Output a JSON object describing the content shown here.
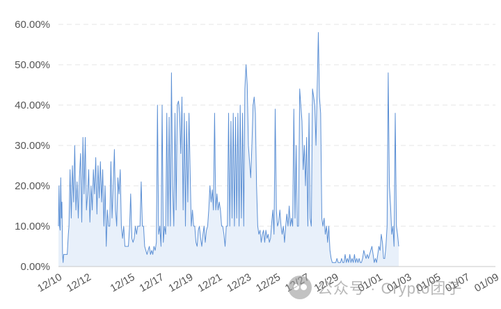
{
  "watermark": {
    "text": "公众号 · Crypto团子"
  },
  "chart_data": {
    "type": "area",
    "title": "",
    "xlabel": "",
    "ylabel": "",
    "ylim": [
      0,
      60
    ],
    "yticks": [
      0,
      10,
      20,
      30,
      40,
      50,
      60
    ],
    "ytick_labels": [
      "0.00%",
      "10.00%",
      "20.00%",
      "30.00%",
      "40.00%",
      "50.00%",
      "60.00%"
    ],
    "y_unit": "%",
    "x_range_days": [
      0,
      30
    ],
    "xticks": [
      {
        "day": 0,
        "label": "12/10"
      },
      {
        "day": 2,
        "label": "12/12"
      },
      {
        "day": 5,
        "label": "12/15"
      },
      {
        "day": 7,
        "label": "12/17"
      },
      {
        "day": 9,
        "label": "12/19"
      },
      {
        "day": 11,
        "label": "12/21"
      },
      {
        "day": 13,
        "label": "12/23"
      },
      {
        "day": 15,
        "label": "12/25"
      },
      {
        "day": 17,
        "label": "12/27"
      },
      {
        "day": 19,
        "label": "12/29"
      },
      {
        "day": 22,
        "label": "01/01"
      },
      {
        "day": 24,
        "label": "01/03"
      },
      {
        "day": 26,
        "label": "01/05"
      },
      {
        "day": 28,
        "label": "01/07"
      },
      {
        "day": 30,
        "label": "01/09"
      }
    ],
    "grid": true,
    "legend": "none",
    "colors": {
      "line": "#5b8fd4",
      "fill": "#e8f0fa",
      "grid": "#e4e4e4",
      "text": "#555555"
    },
    "series": [
      {
        "points": [
          [
            0.0,
            10
          ],
          [
            0.04,
            20
          ],
          [
            0.08,
            10
          ],
          [
            0.12,
            9
          ],
          [
            0.16,
            22
          ],
          [
            0.2,
            12
          ],
          [
            0.24,
            16
          ],
          [
            0.28,
            3
          ],
          [
            0.32,
            1
          ],
          [
            0.36,
            3
          ],
          [
            0.44,
            3
          ],
          [
            0.52,
            3
          ],
          [
            0.6,
            3
          ],
          [
            0.68,
            8
          ],
          [
            0.72,
            10
          ],
          [
            0.8,
            24
          ],
          [
            0.88,
            12
          ],
          [
            0.96,
            25
          ],
          [
            1.04,
            16
          ],
          [
            1.12,
            30
          ],
          [
            1.2,
            14
          ],
          [
            1.28,
            21
          ],
          [
            1.36,
            12
          ],
          [
            1.44,
            22
          ],
          [
            1.52,
            28
          ],
          [
            1.6,
            11
          ],
          [
            1.68,
            32
          ],
          [
            1.76,
            18
          ],
          [
            1.84,
            32
          ],
          [
            1.92,
            14
          ],
          [
            2.0,
            18
          ],
          [
            2.08,
            24
          ],
          [
            2.16,
            11
          ],
          [
            2.24,
            20
          ],
          [
            2.32,
            14
          ],
          [
            2.4,
            24
          ],
          [
            2.48,
            18
          ],
          [
            2.56,
            27
          ],
          [
            2.64,
            13
          ],
          [
            2.72,
            25
          ],
          [
            2.8,
            17
          ],
          [
            2.88,
            26
          ],
          [
            2.96,
            16
          ],
          [
            3.04,
            24
          ],
          [
            3.12,
            10
          ],
          [
            3.2,
            20
          ],
          [
            3.28,
            5
          ],
          [
            3.36,
            14
          ],
          [
            3.44,
            10
          ],
          [
            3.52,
            10
          ],
          [
            3.6,
            26
          ],
          [
            3.68,
            12
          ],
          [
            3.76,
            20
          ],
          [
            3.84,
            29
          ],
          [
            3.92,
            14
          ],
          [
            4.0,
            10
          ],
          [
            4.08,
            22
          ],
          [
            4.16,
            18
          ],
          [
            4.24,
            24
          ],
          [
            4.32,
            10
          ],
          [
            4.4,
            7
          ],
          [
            4.48,
            10
          ],
          [
            4.56,
            5
          ],
          [
            4.64,
            5
          ],
          [
            4.72,
            5
          ],
          [
            4.8,
            5
          ],
          [
            4.88,
            10
          ],
          [
            4.96,
            18
          ],
          [
            5.04,
            7
          ],
          [
            5.12,
            6
          ],
          [
            5.2,
            7
          ],
          [
            5.28,
            10
          ],
          [
            5.36,
            8
          ],
          [
            5.44,
            10
          ],
          [
            5.52,
            10
          ],
          [
            5.6,
            10
          ],
          [
            5.68,
            21
          ],
          [
            5.76,
            10
          ],
          [
            5.84,
            10
          ],
          [
            5.92,
            5
          ],
          [
            6.0,
            4
          ],
          [
            6.08,
            3
          ],
          [
            6.16,
            4
          ],
          [
            6.24,
            5
          ],
          [
            6.32,
            3
          ],
          [
            6.4,
            4
          ],
          [
            6.48,
            3
          ],
          [
            6.56,
            5
          ],
          [
            6.64,
            4
          ],
          [
            6.72,
            6
          ],
          [
            6.8,
            40
          ],
          [
            6.88,
            8
          ],
          [
            6.96,
            10
          ],
          [
            7.04,
            5
          ],
          [
            7.12,
            40
          ],
          [
            7.2,
            6
          ],
          [
            7.28,
            10
          ],
          [
            7.36,
            8
          ],
          [
            7.44,
            38
          ],
          [
            7.52,
            10
          ],
          [
            7.6,
            37
          ],
          [
            7.68,
            10
          ],
          [
            7.76,
            48
          ],
          [
            7.84,
            20
          ],
          [
            7.92,
            10
          ],
          [
            8.0,
            38
          ],
          [
            8.08,
            14
          ],
          [
            8.16,
            40
          ],
          [
            8.24,
            41
          ],
          [
            8.32,
            38
          ],
          [
            8.4,
            28
          ],
          [
            8.48,
            42
          ],
          [
            8.56,
            14
          ],
          [
            8.64,
            38
          ],
          [
            8.72,
            10
          ],
          [
            8.8,
            36
          ],
          [
            8.88,
            16
          ],
          [
            8.96,
            38
          ],
          [
            9.04,
            24
          ],
          [
            9.12,
            10
          ],
          [
            9.2,
            14
          ],
          [
            9.28,
            10
          ],
          [
            9.36,
            10
          ],
          [
            9.44,
            6
          ],
          [
            9.52,
            5
          ],
          [
            9.6,
            9
          ],
          [
            9.68,
            10
          ],
          [
            9.76,
            7
          ],
          [
            9.84,
            5
          ],
          [
            9.92,
            8
          ],
          [
            10.0,
            10
          ],
          [
            10.08,
            6
          ],
          [
            10.16,
            9
          ],
          [
            10.24,
            10
          ],
          [
            10.32,
            14
          ],
          [
            10.4,
            20
          ],
          [
            10.48,
            16
          ],
          [
            10.56,
            19
          ],
          [
            10.64,
            14
          ],
          [
            10.72,
            38
          ],
          [
            10.8,
            14
          ],
          [
            10.88,
            18
          ],
          [
            10.96,
            14
          ],
          [
            11.04,
            16
          ],
          [
            11.12,
            14
          ],
          [
            11.2,
            10
          ],
          [
            11.28,
            10
          ],
          [
            11.36,
            8
          ],
          [
            11.44,
            5
          ],
          [
            11.52,
            10
          ],
          [
            11.6,
            10
          ],
          [
            11.68,
            38
          ],
          [
            11.76,
            10
          ],
          [
            11.84,
            36
          ],
          [
            11.92,
            12
          ],
          [
            12.0,
            38
          ],
          [
            12.08,
            10
          ],
          [
            12.16,
            37
          ],
          [
            12.24,
            12
          ],
          [
            12.32,
            38
          ],
          [
            12.4,
            10
          ],
          [
            12.48,
            40
          ],
          [
            12.56,
            12
          ],
          [
            12.64,
            38
          ],
          [
            12.72,
            10
          ],
          [
            12.8,
            44
          ],
          [
            12.88,
            50
          ],
          [
            12.96,
            45
          ],
          [
            13.04,
            30
          ],
          [
            13.12,
            26
          ],
          [
            13.2,
            22
          ],
          [
            13.28,
            30
          ],
          [
            13.36,
            40
          ],
          [
            13.44,
            42
          ],
          [
            13.52,
            38
          ],
          [
            13.6,
            20
          ],
          [
            13.68,
            10
          ],
          [
            13.76,
            8
          ],
          [
            13.84,
            9
          ],
          [
            13.92,
            6
          ],
          [
            14.0,
            8
          ],
          [
            14.08,
            9
          ],
          [
            14.16,
            6
          ],
          [
            14.24,
            9
          ],
          [
            14.32,
            7
          ],
          [
            14.4,
            8
          ],
          [
            14.48,
            6
          ],
          [
            14.56,
            7
          ],
          [
            14.64,
            11
          ],
          [
            14.72,
            14
          ],
          [
            14.8,
            8
          ],
          [
            14.88,
            39
          ],
          [
            14.96,
            14
          ],
          [
            15.04,
            10
          ],
          [
            15.12,
            11
          ],
          [
            15.2,
            14
          ],
          [
            15.28,
            10
          ],
          [
            15.36,
            8
          ],
          [
            15.44,
            10
          ],
          [
            15.52,
            6
          ],
          [
            15.6,
            10
          ],
          [
            15.68,
            13
          ],
          [
            15.76,
            10
          ],
          [
            15.84,
            15
          ],
          [
            15.92,
            10
          ],
          [
            16.0,
            12
          ],
          [
            16.08,
            10
          ],
          [
            16.16,
            39
          ],
          [
            16.24,
            12
          ],
          [
            16.32,
            30
          ],
          [
            16.4,
            10
          ],
          [
            16.48,
            10
          ],
          [
            16.56,
            44
          ],
          [
            16.64,
            40
          ],
          [
            16.72,
            36
          ],
          [
            16.8,
            24
          ],
          [
            16.88,
            30
          ],
          [
            16.96,
            20
          ],
          [
            17.04,
            32
          ],
          [
            17.12,
            10
          ],
          [
            17.2,
            38
          ],
          [
            17.28,
            12
          ],
          [
            17.36,
            10
          ],
          [
            17.44,
            44
          ],
          [
            17.52,
            42
          ],
          [
            17.6,
            40
          ],
          [
            17.68,
            30
          ],
          [
            17.76,
            44
          ],
          [
            17.84,
            58
          ],
          [
            17.92,
            42
          ],
          [
            18.0,
            38
          ],
          [
            18.08,
            12
          ],
          [
            18.16,
            10
          ],
          [
            18.24,
            12
          ],
          [
            18.32,
            8
          ],
          [
            18.4,
            10
          ],
          [
            18.48,
            6
          ],
          [
            18.56,
            10
          ],
          [
            18.64,
            4
          ],
          [
            18.72,
            2
          ],
          [
            18.8,
            1
          ],
          [
            18.88,
            1
          ],
          [
            18.96,
            1
          ],
          [
            19.04,
            1
          ],
          [
            19.12,
            2
          ],
          [
            19.2,
            1
          ],
          [
            19.28,
            1
          ],
          [
            19.36,
            1
          ],
          [
            19.44,
            2
          ],
          [
            19.52,
            1
          ],
          [
            19.6,
            1
          ],
          [
            19.68,
            3
          ],
          [
            19.76,
            1
          ],
          [
            19.84,
            2
          ],
          [
            19.92,
            1
          ],
          [
            20.0,
            3
          ],
          [
            20.08,
            1
          ],
          [
            20.16,
            2
          ],
          [
            20.24,
            1
          ],
          [
            20.32,
            3
          ],
          [
            20.4,
            1
          ],
          [
            20.48,
            2
          ],
          [
            20.56,
            1
          ],
          [
            20.64,
            2
          ],
          [
            20.72,
            1
          ],
          [
            20.8,
            1
          ],
          [
            20.88,
            2
          ],
          [
            20.96,
            4
          ],
          [
            21.04,
            3
          ],
          [
            21.12,
            2
          ],
          [
            21.2,
            3
          ],
          [
            21.28,
            2
          ],
          [
            21.36,
            3
          ],
          [
            21.44,
            4
          ],
          [
            21.52,
            5
          ],
          [
            21.6,
            3
          ],
          [
            21.68,
            1
          ],
          [
            21.76,
            2
          ],
          [
            21.84,
            1
          ],
          [
            21.92,
            3
          ],
          [
            22.0,
            5
          ],
          [
            22.08,
            4
          ],
          [
            22.16,
            8
          ],
          [
            22.24,
            6
          ],
          [
            22.32,
            2
          ],
          [
            22.4,
            2
          ],
          [
            22.48,
            5
          ],
          [
            22.56,
            10
          ],
          [
            22.64,
            48
          ],
          [
            22.72,
            20
          ],
          [
            22.8,
            15
          ],
          [
            22.88,
            8
          ],
          [
            22.96,
            10
          ],
          [
            23.04,
            5
          ],
          [
            23.12,
            38
          ],
          [
            23.2,
            10
          ],
          [
            23.28,
            8
          ],
          [
            23.36,
            5
          ]
        ]
      }
    ]
  }
}
